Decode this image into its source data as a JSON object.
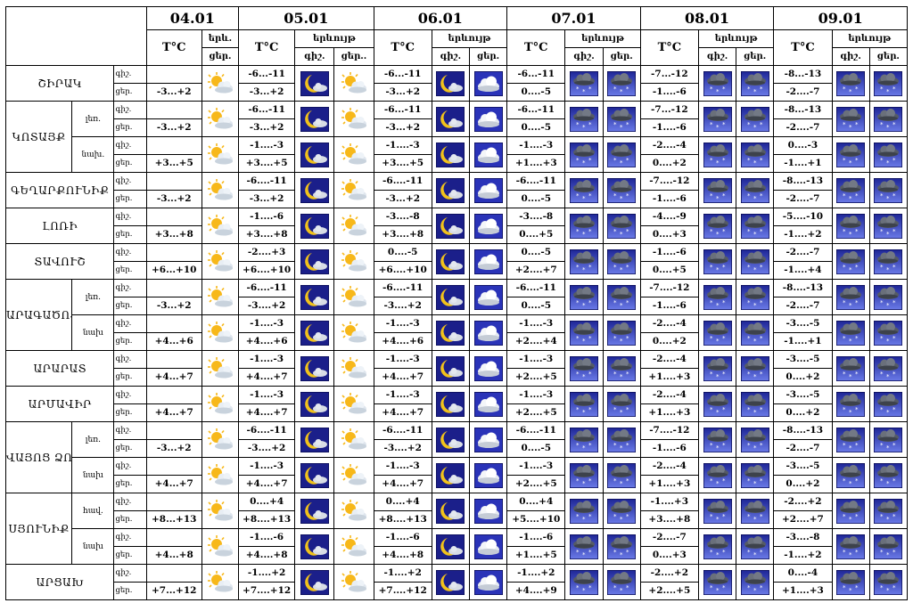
{
  "corner": "",
  "dates": [
    "04.01",
    "05.01",
    "06.01",
    "07.01",
    "08.01",
    "09.01"
  ],
  "header": {
    "d1": {
      "t": "T°C",
      "w": "երև.",
      "w2": "ցեր."
    },
    "d2": {
      "t": "T°C",
      "w": "երևույթ",
      "n": "գիշ.",
      "d": "ցեր.."
    },
    "dx": {
      "t": "T°C",
      "w": "երևույթ",
      "n": "գիշ.",
      "d": "ցեր."
    }
  },
  "period": {
    "night": "գիշ.",
    "day": "ցեր."
  },
  "rows": [
    {
      "name": "ՇԻՐԱԿ",
      "sub": "",
      "span": 1,
      "d1": {
        "n": "",
        "d": "-3...+2",
        "icon": "partly-cloudy-sun"
      },
      "days": [
        {
          "n": "-6...-11",
          "d": "-3...+2",
          "in": "moon",
          "id": "partly-cloudy-sun"
        },
        {
          "n": "-6...-11",
          "d": "-3...+2",
          "in": "moon",
          "id": "cloud"
        },
        {
          "n": "-6...-11",
          "d": "0....-5",
          "in": "snow-cloud",
          "id": "snow-cloud"
        },
        {
          "n": "-7...-12",
          "d": "-1....-6",
          "in": "snow-cloud",
          "id": "snow-cloud"
        },
        {
          "n": "-8...-13",
          "d": "-2....-7",
          "in": "snow-cloud",
          "id": "snow-cloud"
        }
      ]
    },
    {
      "name": "ԿՈՏԱՅՔ",
      "sub": "լեռ.",
      "span": 2,
      "d1": {
        "n": "",
        "d": "-3...+2",
        "icon": "partly-cloudy-sun"
      },
      "days": [
        {
          "n": "-6...-11",
          "d": "-3...+2",
          "in": "moon",
          "id": "partly-cloudy-sun"
        },
        {
          "n": "-6...-11",
          "d": "-3...+2",
          "in": "moon",
          "id": "cloud"
        },
        {
          "n": "-6...-11",
          "d": "0....-5",
          "in": "snow-cloud",
          "id": "snow-cloud"
        },
        {
          "n": "-7...-12",
          "d": "-1....-6",
          "in": "snow-cloud",
          "id": "snow-cloud"
        },
        {
          "n": "-8...-13",
          "d": "-2....-7",
          "in": "snow-cloud",
          "id": "snow-cloud"
        }
      ]
    },
    {
      "name": "",
      "sub": "նախ.",
      "span": 0,
      "d1": {
        "n": "",
        "d": "+3...+5",
        "icon": "partly-cloudy-sun"
      },
      "days": [
        {
          "n": "-1....-3",
          "d": "+3....+5",
          "in": "moon",
          "id": "partly-cloudy-sun"
        },
        {
          "n": "-1....-3",
          "d": "+3....+5",
          "in": "moon",
          "id": "cloud"
        },
        {
          "n": "-1....-3",
          "d": "+1....+3",
          "in": "snow-cloud",
          "id": "snow-cloud"
        },
        {
          "n": "-2....-4",
          "d": "0....+2",
          "in": "snow-cloud",
          "id": "snow-cloud"
        },
        {
          "n": "0....-3",
          "d": "-1....+1",
          "in": "snow-cloud",
          "id": "snow-cloud"
        }
      ]
    },
    {
      "name": "ԳԵՂԱՐՔՈՒՆԻՔ",
      "sub": "",
      "span": 1,
      "d1": {
        "n": "",
        "d": "-3...+2",
        "icon": "partly-cloudy-sun"
      },
      "days": [
        {
          "n": "-6....-11",
          "d": "-3...+2",
          "in": "moon",
          "id": "partly-cloudy-sun"
        },
        {
          "n": "-6....-11",
          "d": "-3...+2",
          "in": "moon",
          "id": "cloud"
        },
        {
          "n": "-6....-11",
          "d": "0....-5",
          "in": "snow-cloud",
          "id": "snow-cloud"
        },
        {
          "n": "-7....-12",
          "d": "-1....-6",
          "in": "snow-cloud",
          "id": "snow-cloud"
        },
        {
          "n": "-8....-13",
          "d": "-2....-7",
          "in": "snow-cloud",
          "id": "snow-cloud"
        }
      ]
    },
    {
      "name": "ԼՈՌԻ",
      "sub": "",
      "span": 1,
      "d1": {
        "n": "",
        "d": "+3...+8",
        "icon": "partly-cloudy-sun"
      },
      "days": [
        {
          "n": "-1....-6",
          "d": "+3....+8",
          "in": "moon",
          "id": "partly-cloudy-sun"
        },
        {
          "n": "-3....-8",
          "d": "+3....+8",
          "in": "moon",
          "id": "cloud"
        },
        {
          "n": "-3....-8",
          "d": "0....+5",
          "in": "snow-cloud",
          "id": "snow-cloud"
        },
        {
          "n": "-4....-9",
          "d": "0....+3",
          "in": "snow-cloud",
          "id": "snow-cloud"
        },
        {
          "n": "-5....-10",
          "d": "-1....+2",
          "in": "snow-cloud",
          "id": "snow-cloud"
        }
      ]
    },
    {
      "name": "ՏԱՎՈՒՇ",
      "sub": "",
      "span": 1,
      "d1": {
        "n": "",
        "d": "+6...+10",
        "icon": "partly-cloudy-sun"
      },
      "days": [
        {
          "n": "-2....+3",
          "d": "+6....+10",
          "in": "moon",
          "id": "partly-cloudy-sun"
        },
        {
          "n": "0....-5",
          "d": "+6....+10",
          "in": "moon",
          "id": "cloud"
        },
        {
          "n": "0....-5",
          "d": "+2....+7",
          "in": "snow-cloud",
          "id": "snow-cloud"
        },
        {
          "n": "-1....-6",
          "d": "0....+5",
          "in": "snow-cloud",
          "id": "snow-cloud"
        },
        {
          "n": "-2....-7",
          "d": "-1....+4",
          "in": "snow-cloud",
          "id": "snow-cloud"
        }
      ]
    },
    {
      "name": "ԱՐԱԳԱԾՈՏՆ",
      "sub": "լեռ.",
      "span": 2,
      "d1": {
        "n": "",
        "d": "-3...+2",
        "icon": "partly-cloudy-sun"
      },
      "days": [
        {
          "n": "-6....-11",
          "d": "-3....+2",
          "in": "moon",
          "id": "partly-cloudy-sun"
        },
        {
          "n": "-6....-11",
          "d": "-3....+2",
          "in": "moon",
          "id": "cloud"
        },
        {
          "n": "-6....-11",
          "d": "0....-5",
          "in": "snow-cloud",
          "id": "snow-cloud"
        },
        {
          "n": "-7....-12",
          "d": "-1....-6",
          "in": "snow-cloud",
          "id": "snow-cloud"
        },
        {
          "n": "-8....-13",
          "d": "-2....-7",
          "in": "snow-cloud",
          "id": "snow-cloud"
        }
      ]
    },
    {
      "name": "",
      "sub": "նախ",
      "span": 0,
      "d1": {
        "n": "",
        "d": "+4...+6",
        "icon": "partly-cloudy-sun"
      },
      "days": [
        {
          "n": "-1....-3",
          "d": "+4....+6",
          "in": "moon",
          "id": "partly-cloudy-sun"
        },
        {
          "n": "-1....-3",
          "d": "+4....+6",
          "in": "moon",
          "id": "cloud"
        },
        {
          "n": "-1....-3",
          "d": "+2....+4",
          "in": "snow-cloud",
          "id": "snow-cloud"
        },
        {
          "n": "-2....-4",
          "d": "0....+2",
          "in": "snow-cloud",
          "id": "snow-cloud"
        },
        {
          "n": "-3....-5",
          "d": "-1....+1",
          "in": "snow-cloud",
          "id": "snow-cloud"
        }
      ]
    },
    {
      "name": "ԱՐԱՐԱՏ",
      "sub": "",
      "span": 1,
      "d1": {
        "n": "",
        "d": "+4...+7",
        "icon": "partly-cloudy-sun"
      },
      "days": [
        {
          "n": "-1....-3",
          "d": "+4....+7",
          "in": "moon",
          "id": "partly-cloudy-sun"
        },
        {
          "n": "-1....-3",
          "d": "+4....+7",
          "in": "moon",
          "id": "cloud"
        },
        {
          "n": "-1....-3",
          "d": "+2....+5",
          "in": "snow-cloud",
          "id": "snow-cloud"
        },
        {
          "n": "-2....-4",
          "d": "+1....+3",
          "in": "snow-cloud",
          "id": "snow-cloud"
        },
        {
          "n": "-3....-5",
          "d": "0....+2",
          "in": "snow-cloud",
          "id": "snow-cloud"
        }
      ]
    },
    {
      "name": "ԱՐՄԱՎԻՐ",
      "sub": "",
      "span": 1,
      "d1": {
        "n": "",
        "d": "+4...+7",
        "icon": "partly-cloudy-sun"
      },
      "days": [
        {
          "n": "-1....-3",
          "d": "+4....+7",
          "in": "moon",
          "id": "partly-cloudy-sun"
        },
        {
          "n": "-1....-3",
          "d": "+4....+7",
          "in": "moon",
          "id": "cloud"
        },
        {
          "n": "-1....-3",
          "d": "+2....+5",
          "in": "snow-cloud",
          "id": "snow-cloud"
        },
        {
          "n": "-2....-4",
          "d": "+1....+3",
          "in": "snow-cloud",
          "id": "snow-cloud"
        },
        {
          "n": "-3....-5",
          "d": "0....+2",
          "in": "snow-cloud",
          "id": "snow-cloud"
        }
      ]
    },
    {
      "name": "ՎԱՅՈՑ ՁՈՐ",
      "sub": "լեռ.",
      "span": 2,
      "d1": {
        "n": "",
        "d": "-3...+2",
        "icon": "partly-cloudy-sun"
      },
      "days": [
        {
          "n": "-6....-11",
          "d": "-3....+2",
          "in": "moon",
          "id": "partly-cloudy-sun"
        },
        {
          "n": "-6....-11",
          "d": "-3....+2",
          "in": "moon",
          "id": "cloud"
        },
        {
          "n": "-6....-11",
          "d": "0....-5",
          "in": "snow-cloud",
          "id": "snow-cloud"
        },
        {
          "n": "-7....-12",
          "d": "-1....-6",
          "in": "snow-cloud",
          "id": "snow-cloud"
        },
        {
          "n": "-8....-13",
          "d": "-2....-7",
          "in": "snow-cloud",
          "id": "snow-cloud"
        }
      ]
    },
    {
      "name": "",
      "sub": "նախ",
      "span": 0,
      "d1": {
        "n": "",
        "d": "+4...+7",
        "icon": "partly-cloudy-sun"
      },
      "days": [
        {
          "n": "-1....-3",
          "d": "+4....+7",
          "in": "moon",
          "id": "partly-cloudy-sun"
        },
        {
          "n": "-1....-3",
          "d": "+4....+7",
          "in": "moon",
          "id": "cloud"
        },
        {
          "n": "-1....-3",
          "d": "+2....+5",
          "in": "snow-cloud",
          "id": "snow-cloud"
        },
        {
          "n": "-2....-4",
          "d": "+1....+3",
          "in": "snow-cloud",
          "id": "snow-cloud"
        },
        {
          "n": "-3....-5",
          "d": "0....+2",
          "in": "snow-cloud",
          "id": "snow-cloud"
        }
      ]
    },
    {
      "name": "ՍՅՈՒՆԻՔ",
      "sub": "հավ.",
      "span": 2,
      "d1": {
        "n": "",
        "d": "+8...+13",
        "icon": "partly-cloudy-sun"
      },
      "days": [
        {
          "n": "0....+4",
          "d": "+8....+13",
          "in": "moon",
          "id": "partly-cloudy-sun"
        },
        {
          "n": "0....+4",
          "d": "+8....+13",
          "in": "moon",
          "id": "cloud"
        },
        {
          "n": "0....+4",
          "d": "+5....+10",
          "in": "snow-cloud",
          "id": "snow-cloud"
        },
        {
          "n": "-1....+3",
          "d": "+3....+8",
          "in": "snow-cloud",
          "id": "snow-cloud"
        },
        {
          "n": "-2....+2",
          "d": "+2....+7",
          "in": "snow-cloud",
          "id": "snow-cloud"
        }
      ]
    },
    {
      "name": "",
      "sub": "նախ",
      "span": 0,
      "d1": {
        "n": "",
        "d": "+4...+8",
        "icon": "partly-cloudy-sun"
      },
      "days": [
        {
          "n": "-1....-6",
          "d": "+4....+8",
          "in": "moon",
          "id": "partly-cloudy-sun"
        },
        {
          "n": "-1....-6",
          "d": "+4....+8",
          "in": "moon",
          "id": "cloud"
        },
        {
          "n": "-1....-6",
          "d": "+1....+5",
          "in": "snow-cloud",
          "id": "snow-cloud"
        },
        {
          "n": "-2....-7",
          "d": "0....+3",
          "in": "snow-cloud",
          "id": "snow-cloud"
        },
        {
          "n": "-3....-8",
          "d": "-1....+2",
          "in": "snow-cloud",
          "id": "snow-cloud"
        }
      ]
    },
    {
      "name": "ԱՐՑԱԽ",
      "sub": "",
      "span": 1,
      "d1": {
        "n": "",
        "d": "+7...+12",
        "icon": "partly-cloudy-sun"
      },
      "days": [
        {
          "n": "-1....+2",
          "d": "+7....+12",
          "in": "moon",
          "id": "partly-cloudy-sun"
        },
        {
          "n": "-1....+2",
          "d": "+7....+12",
          "in": "moon",
          "id": "cloud"
        },
        {
          "n": "-1....+2",
          "d": "+4....+9",
          "in": "snow-cloud",
          "id": "snow-cloud"
        },
        {
          "n": "-2....+2",
          "d": "+2....+5",
          "in": "snow-cloud",
          "id": "snow-cloud"
        },
        {
          "n": "0....-4",
          "d": "+1....+3",
          "in": "snow-cloud",
          "id": "snow-cloud"
        }
      ]
    }
  ]
}
